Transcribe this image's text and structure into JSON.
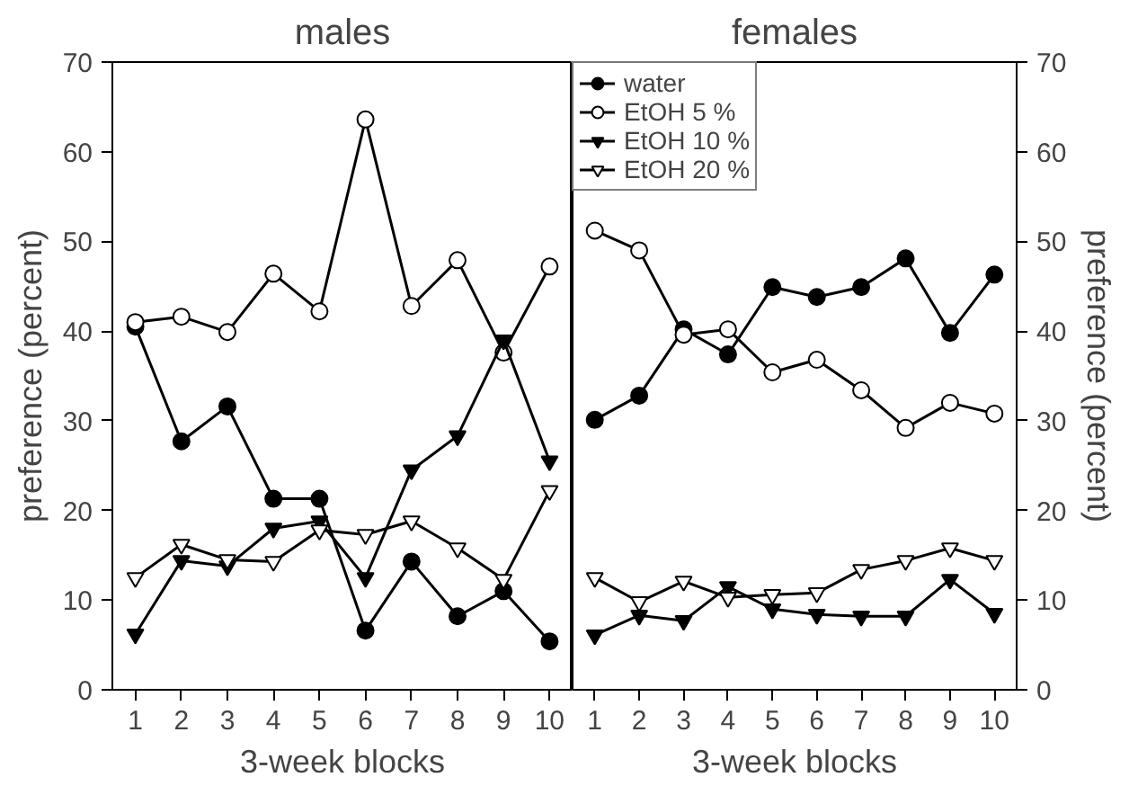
{
  "chart_data": [
    {
      "type": "line",
      "title": "males",
      "xlabel": "3-week blocks",
      "ylabel": "preference (percent)",
      "x": [
        1,
        2,
        3,
        4,
        5,
        6,
        7,
        8,
        9,
        10
      ],
      "xlim": [
        0.5,
        10.5
      ],
      "xticks": [
        1,
        2,
        3,
        4,
        5,
        6,
        7,
        8,
        9,
        10
      ],
      "ylim": [
        0,
        70
      ],
      "yticks": [
        0,
        10,
        20,
        30,
        40,
        50,
        60,
        70
      ],
      "grid": false,
      "legend": false,
      "series": [
        {
          "color": "#000000",
          "marker": "circle",
          "values": [
            40.5,
            27.7,
            31.6,
            21.3,
            21.3,
            6.6,
            14.3,
            8.2,
            11.0,
            5.4
          ]
        },
        {
          "color": "#000000",
          "marker": "circle_open",
          "values": [
            41.0,
            41.6,
            39.9,
            46.4,
            42.2,
            63.6,
            42.8,
            47.9,
            37.6,
            47.2
          ]
        },
        {
          "color": "#000000",
          "marker": "triangle_down",
          "values": [
            6.2,
            14.4,
            13.8,
            18.0,
            18.8,
            12.5,
            24.5,
            28.3,
            39.0,
            25.5
          ]
        },
        {
          "color": "#000000",
          "marker": "triangle_down_open",
          "values": [
            12.5,
            16.2,
            14.5,
            14.3,
            17.8,
            17.3,
            18.8,
            15.8,
            12.3,
            22.2
          ]
        }
      ]
    },
    {
      "type": "line",
      "title": "females",
      "xlabel": "3-week blocks",
      "ylabel": "preference (percent)",
      "x": [
        1,
        2,
        3,
        4,
        5,
        6,
        7,
        8,
        9,
        10
      ],
      "xlim": [
        0.5,
        10.5
      ],
      "xticks": [
        1,
        2,
        3,
        4,
        5,
        6,
        7,
        8,
        9,
        10
      ],
      "ylim": [
        0,
        70
      ],
      "yticks": [
        0,
        10,
        20,
        30,
        40,
        50,
        60,
        70
      ],
      "grid": false,
      "legend": "top left",
      "series": [
        {
          "name": "water",
          "color": "#000000",
          "marker": "circle",
          "values": [
            30.1,
            32.8,
            40.2,
            37.4,
            44.9,
            43.8,
            44.9,
            48.1,
            39.8,
            46.3
          ]
        },
        {
          "name": "EtOH 5 %",
          "color": "#000000",
          "marker": "circle_open",
          "values": [
            51.2,
            49.0,
            39.6,
            40.2,
            35.4,
            36.8,
            33.4,
            29.2,
            32.0,
            30.8
          ]
        },
        {
          "name": "EtOH 10 %",
          "color": "#000000",
          "marker": "triangle_down",
          "values": [
            6.1,
            8.3,
            7.7,
            11.5,
            9.0,
            8.4,
            8.2,
            8.2,
            12.3,
            8.5
          ]
        },
        {
          "name": "EtOH 20 %",
          "color": "#000000",
          "marker": "triangle_down_open",
          "values": [
            12.5,
            9.8,
            12.1,
            10.3,
            10.6,
            10.8,
            13.4,
            14.4,
            15.8,
            14.4
          ]
        }
      ]
    }
  ]
}
